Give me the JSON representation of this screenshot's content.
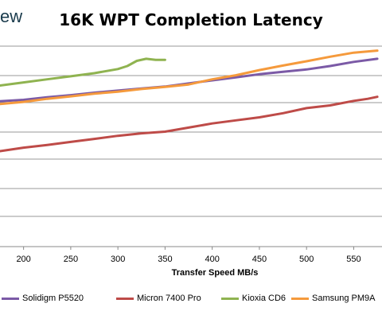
{
  "brand": {
    "text": "ew"
  },
  "chart_data": {
    "type": "line",
    "title": "16K WPT Completion Latency",
    "xlabel": "Transfer Speed MB/s",
    "ylabel": "",
    "xlim": [
      175,
      580
    ],
    "x_ticks": [
      200,
      250,
      300,
      350,
      400,
      450,
      500,
      550
    ],
    "grid": true,
    "legend_position": "bottom",
    "series": [
      {
        "name": "Solidigm P5520",
        "color": "#7b5aa6",
        "x": [
          175,
          200,
          225,
          250,
          275,
          300,
          325,
          350,
          375,
          400,
          425,
          450,
          475,
          500,
          525,
          550,
          575
        ],
        "y": [
          0.292,
          0.285,
          0.272,
          0.262,
          0.25,
          0.24,
          0.23,
          0.22,
          0.205,
          0.19,
          0.175,
          0.16,
          0.148,
          0.137,
          0.12,
          0.1,
          0.085
        ]
      },
      {
        "name": "Micron 7400 Pro",
        "color": "#be4b48",
        "x": [
          175,
          200,
          225,
          250,
          275,
          300,
          325,
          350,
          375,
          400,
          425,
          450,
          475,
          500,
          525,
          550,
          565,
          575
        ],
        "y": [
          0.535,
          0.518,
          0.505,
          0.49,
          0.475,
          0.46,
          0.448,
          0.44,
          0.42,
          0.4,
          0.385,
          0.37,
          0.35,
          0.325,
          0.312,
          0.29,
          0.28,
          0.27
        ]
      },
      {
        "name": "Kioxia CD6",
        "color": "#8fb350",
        "x": [
          175,
          200,
          225,
          250,
          275,
          300,
          310,
          320,
          330,
          340,
          350
        ],
        "y": [
          0.215,
          0.2,
          0.185,
          0.17,
          0.155,
          0.135,
          0.12,
          0.095,
          0.085,
          0.09,
          0.09
        ]
      },
      {
        "name": "Samsung PM9A",
        "color": "#f59a3c",
        "x": [
          175,
          200,
          225,
          250,
          275,
          300,
          325,
          350,
          375,
          400,
          425,
          450,
          475,
          500,
          525,
          550,
          575
        ],
        "y": [
          0.305,
          0.295,
          0.28,
          0.268,
          0.255,
          0.245,
          0.232,
          0.222,
          0.21,
          0.185,
          0.165,
          0.14,
          0.118,
          0.097,
          0.075,
          0.055,
          0.045
        ]
      }
    ]
  }
}
